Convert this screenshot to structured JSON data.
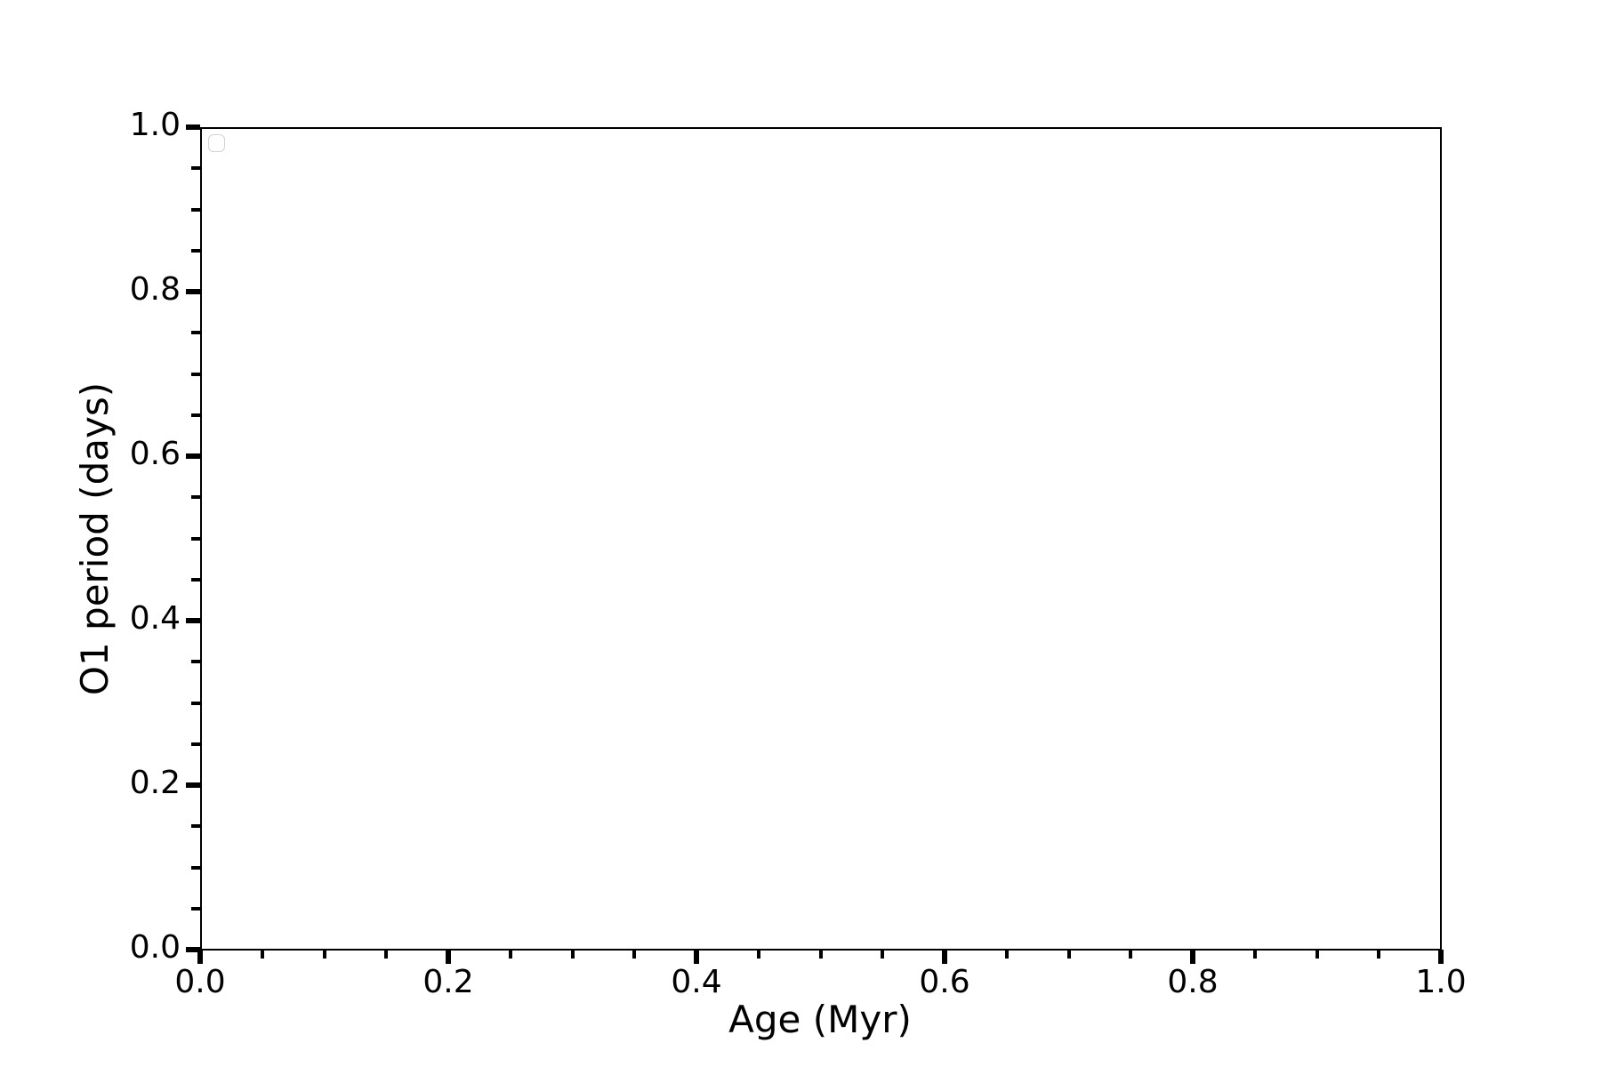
{
  "figure": {
    "background_color": "#ffffff",
    "axis_color": "#000000",
    "legend_border_color": "#d3d3d3"
  },
  "chart_data": {
    "type": "scatter",
    "title": "",
    "xlabel": "Age (Myr)",
    "ylabel": "O1 period (days)",
    "xlim": [
      0.0,
      1.0
    ],
    "ylim": [
      0.0,
      1.0
    ],
    "x_major_ticks": [
      0.0,
      0.2,
      0.4,
      0.6,
      0.8,
      1.0
    ],
    "x_tick_labels": [
      "0.0",
      "0.2",
      "0.4",
      "0.6",
      "0.8",
      "1.0"
    ],
    "y_major_ticks": [
      0.0,
      0.2,
      0.4,
      0.6,
      0.8,
      1.0
    ],
    "y_tick_labels": [
      "0.0",
      "0.2",
      "0.4",
      "0.6",
      "0.8",
      "1.0"
    ],
    "minor_ticks_per_interval": 3,
    "grid": false,
    "legend": {
      "visible": true,
      "position": "upper-left",
      "entries": []
    },
    "series": []
  }
}
